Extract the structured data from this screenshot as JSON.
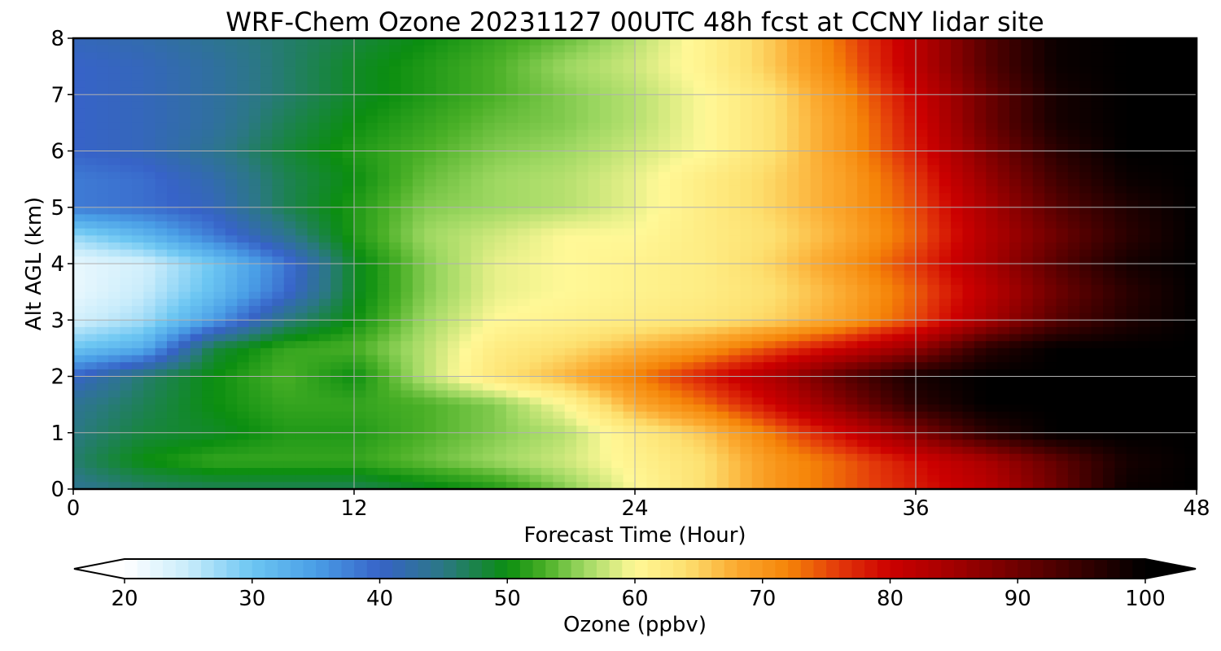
{
  "chart_data": {
    "type": "heatmap",
    "title": "WRF-Chem Ozone  20231127 00UTC 48h fcst at CCNY lidar site",
    "xlabel": "Forecast Time (Hour)",
    "ylabel": "Alt AGL (km)",
    "xlim": [
      0,
      48
    ],
    "ylim": [
      0,
      8
    ],
    "xticks": [
      "0",
      "12",
      "24",
      "36",
      "48"
    ],
    "yticks": [
      "0",
      "1",
      "2",
      "3",
      "4",
      "5",
      "6",
      "7",
      "8"
    ],
    "grid": true,
    "colorbar": {
      "label": "Ozone  (ppbv)",
      "vmin": 20,
      "vmax": 100,
      "ticks": [
        "20",
        "30",
        "40",
        "50",
        "60",
        "70",
        "80",
        "90",
        "100"
      ],
      "extend": "both",
      "colors": [
        [
          20,
          "#ffffff"
        ],
        [
          25,
          "#c8ecfb"
        ],
        [
          30,
          "#6cc6f2"
        ],
        [
          35,
          "#4a9ee6"
        ],
        [
          40,
          "#3763c8"
        ],
        [
          45,
          "#2b7884"
        ],
        [
          50,
          "#0b8e10"
        ],
        [
          53,
          "#4ab027"
        ],
        [
          56,
          "#9ed862"
        ],
        [
          60,
          "#fff897"
        ],
        [
          64,
          "#fde070"
        ],
        [
          68,
          "#fba92f"
        ],
        [
          72,
          "#f58408"
        ],
        [
          76,
          "#e3380a"
        ],
        [
          80,
          "#cc0000"
        ],
        [
          85,
          "#a20000"
        ],
        [
          90,
          "#6e0000"
        ],
        [
          95,
          "#360000"
        ],
        [
          100,
          "#000000"
        ]
      ]
    },
    "x": [
      0,
      3,
      6,
      9,
      12,
      15,
      18,
      21,
      24,
      27,
      30,
      33,
      36,
      39,
      42,
      45,
      48
    ],
    "y": [
      0,
      0.5,
      1,
      1.5,
      2,
      2.5,
      3,
      3.5,
      4,
      4.5,
      5,
      5.5,
      6,
      6.5,
      7,
      7.5,
      8
    ],
    "z": [
      [
        44,
        46,
        47,
        47,
        47,
        49,
        51,
        55,
        60,
        64,
        70,
        74,
        78,
        82,
        90,
        99,
        100
      ],
      [
        46,
        50,
        52,
        52,
        52,
        54,
        56,
        58,
        61,
        64,
        70,
        74,
        79,
        84,
        91,
        98,
        100
      ],
      [
        45,
        48,
        49,
        51,
        51,
        53,
        55,
        57,
        62,
        66,
        73,
        80,
        88,
        96,
        100,
        100,
        100
      ],
      [
        44,
        47,
        50,
        52,
        52,
        53,
        55,
        60,
        68,
        73,
        80,
        88,
        96,
        100,
        100,
        100,
        100
      ],
      [
        40,
        46,
        50,
        53,
        50,
        57,
        63,
        67,
        72,
        78,
        84,
        92,
        98,
        100,
        100,
        100,
        100
      ],
      [
        30,
        33,
        48,
        52,
        53,
        57,
        62,
        64,
        67,
        70,
        75,
        80,
        86,
        96,
        100,
        100,
        100
      ],
      [
        24,
        27,
        35,
        45,
        50,
        56,
        60,
        61,
        62,
        63,
        65,
        69,
        75,
        84,
        92,
        97,
        100
      ],
      [
        22,
        25,
        31,
        39,
        49,
        55,
        59,
        60,
        61,
        62,
        64,
        68,
        74,
        82,
        90,
        96,
        100
      ],
      [
        22,
        24,
        30,
        38,
        49,
        55,
        59,
        60,
        61,
        62,
        65,
        70,
        76,
        84,
        92,
        98,
        100
      ],
      [
        28,
        32,
        38,
        44,
        51,
        56,
        58,
        60,
        60,
        62,
        64,
        68,
        74,
        83,
        90,
        96,
        100
      ],
      [
        38,
        39,
        41,
        47,
        51,
        55,
        56,
        57,
        59,
        62,
        65,
        69,
        75,
        84,
        92,
        97,
        100
      ],
      [
        38,
        39,
        42,
        47,
        50,
        54,
        56,
        57,
        59,
        62,
        65,
        69,
        76,
        86,
        94,
        99,
        100
      ],
      [
        40,
        41,
        44,
        48,
        51,
        53,
        55,
        56,
        58,
        60,
        64,
        70,
        78,
        88,
        96,
        100,
        100
      ],
      [
        40,
        41,
        43,
        47,
        50,
        52,
        54,
        55,
        57,
        60,
        64,
        70,
        79,
        90,
        98,
        100,
        100
      ],
      [
        40,
        41,
        43,
        46,
        49,
        51,
        53,
        55,
        57,
        60,
        64,
        71,
        80,
        90,
        98,
        100,
        100
      ],
      [
        40,
        41,
        43,
        46,
        49,
        51,
        53,
        56,
        58,
        61,
        66,
        73,
        82,
        92,
        99,
        100,
        100
      ],
      [
        41,
        42,
        44,
        46,
        48,
        50,
        52,
        54,
        57,
        61,
        66,
        74,
        82,
        92,
        99,
        100,
        100
      ]
    ]
  }
}
